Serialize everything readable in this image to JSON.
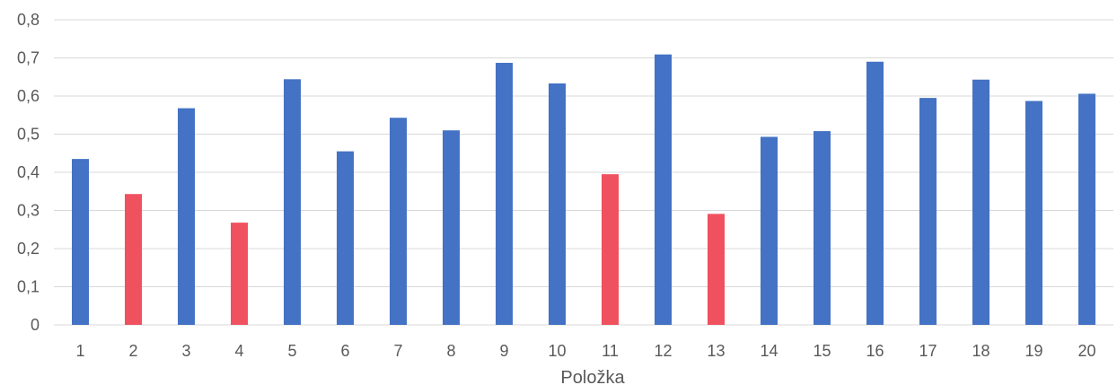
{
  "chart_data": {
    "type": "bar",
    "categories": [
      "1",
      "2",
      "3",
      "4",
      "5",
      "6",
      "7",
      "8",
      "9",
      "10",
      "11",
      "12",
      "13",
      "14",
      "15",
      "16",
      "17",
      "18",
      "19",
      "20"
    ],
    "values": [
      0.435,
      0.343,
      0.568,
      0.268,
      0.644,
      0.455,
      0.543,
      0.51,
      0.687,
      0.633,
      0.395,
      0.709,
      0.291,
      0.493,
      0.508,
      0.69,
      0.595,
      0.643,
      0.587,
      0.606
    ],
    "highlighted": [
      false,
      true,
      false,
      true,
      false,
      false,
      false,
      false,
      false,
      false,
      true,
      false,
      true,
      false,
      false,
      false,
      false,
      false,
      false,
      false
    ],
    "xlabel": "Položka",
    "ylabel": "",
    "ylim": [
      0,
      0.8
    ],
    "yticks": [
      "0",
      "0,1",
      "0,2",
      "0,3",
      "0,4",
      "0,5",
      "0,6",
      "0,7",
      "0,8"
    ],
    "grid": "horizontal",
    "colors": {
      "default": "#4472c4",
      "highlight": "#f0515f",
      "grid": "#d9d9d9",
      "text": "#595959"
    }
  }
}
